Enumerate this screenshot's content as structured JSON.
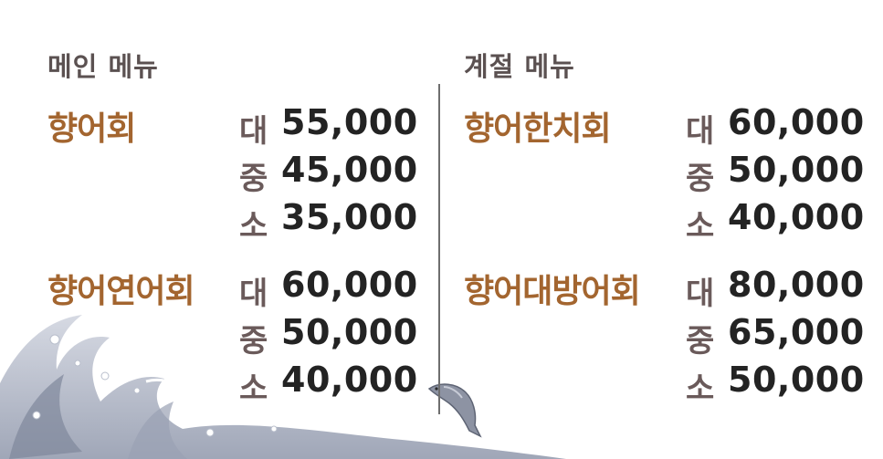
{
  "left": {
    "title": "메인 메뉴",
    "items": [
      {
        "name": "향어회",
        "prices": [
          {
            "size": "대",
            "price": "55,000"
          },
          {
            "size": "중",
            "price": "45,000"
          },
          {
            "size": "소",
            "price": "35,000"
          }
        ]
      },
      {
        "name": "향어연어회",
        "prices": [
          {
            "size": "대",
            "price": "60,000"
          },
          {
            "size": "중",
            "price": "50,000"
          },
          {
            "size": "소",
            "price": "40,000"
          }
        ]
      }
    ]
  },
  "right": {
    "title": "계절 메뉴",
    "items": [
      {
        "name": "향어한치회",
        "prices": [
          {
            "size": "대",
            "price": "60,000"
          },
          {
            "size": "중",
            "price": "50,000"
          },
          {
            "size": "소",
            "price": "40,000"
          }
        ]
      },
      {
        "name": "향어대방어회",
        "prices": [
          {
            "size": "대",
            "price": "80,000"
          },
          {
            "size": "중",
            "price": "65,000"
          },
          {
            "size": "소",
            "price": "50,000"
          }
        ]
      }
    ]
  },
  "colors": {
    "item_name": "#a3652f",
    "section_title": "#5b5151",
    "price": "#232323",
    "size": "#6a5a5a"
  },
  "icons": [
    "wave-illustration",
    "fish-icon"
  ]
}
